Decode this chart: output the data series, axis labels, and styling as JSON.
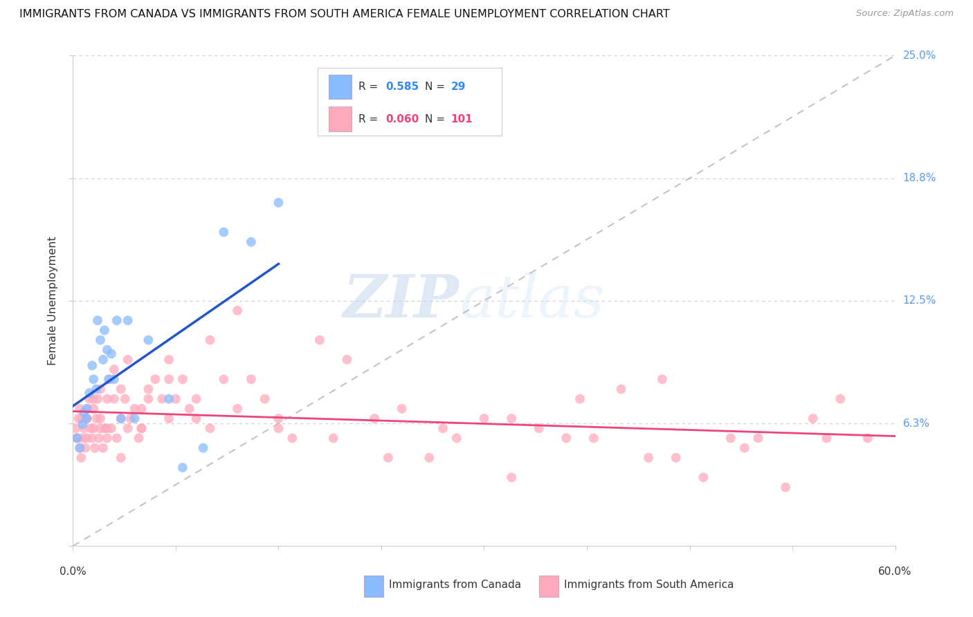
{
  "title": "IMMIGRANTS FROM CANADA VS IMMIGRANTS FROM SOUTH AMERICA FEMALE UNEMPLOYMENT CORRELATION CHART",
  "source": "Source: ZipAtlas.com",
  "ylabel": "Female Unemployment",
  "xlim": [
    0.0,
    60.0
  ],
  "ylim": [
    0.0,
    25.0
  ],
  "canada_color": "#88bbff",
  "canada_line_color": "#2255cc",
  "south_america_color": "#ffaabc",
  "sa_line_color": "#ee4477",
  "canada_R": 0.585,
  "canada_N": 29,
  "sa_R": 0.06,
  "sa_N": 101,
  "legend_label_canada": "Immigrants from Canada",
  "legend_label_sa": "Immigrants from South America",
  "watermark_zip": "ZIP",
  "watermark_atlas": "atlas",
  "right_ytick_positions": [
    6.25,
    12.5,
    18.75,
    25.0
  ],
  "right_ytick_labels": [
    "6.3%",
    "12.5%",
    "18.8%",
    "25.0%"
  ],
  "canada_x": [
    0.3,
    0.5,
    0.7,
    0.8,
    1.0,
    1.0,
    1.2,
    1.4,
    1.5,
    1.7,
    1.8,
    2.0,
    2.2,
    2.3,
    2.5,
    2.6,
    2.8,
    3.0,
    3.2,
    3.5,
    4.0,
    4.5,
    5.5,
    7.0,
    8.0,
    9.5,
    11.0,
    13.0,
    15.0
  ],
  "canada_y": [
    5.5,
    5.0,
    6.2,
    6.8,
    6.5,
    7.0,
    7.8,
    9.2,
    8.5,
    8.0,
    11.5,
    10.5,
    9.5,
    11.0,
    10.0,
    8.5,
    9.8,
    8.5,
    11.5,
    6.5,
    11.5,
    6.5,
    10.5,
    7.5,
    4.0,
    5.0,
    16.0,
    15.5,
    17.5
  ],
  "sa_x": [
    0.2,
    0.3,
    0.4,
    0.5,
    0.5,
    0.6,
    0.7,
    0.8,
    0.9,
    1.0,
    1.0,
    1.1,
    1.2,
    1.3,
    1.4,
    1.5,
    1.5,
    1.6,
    1.7,
    1.8,
    1.9,
    2.0,
    2.0,
    2.2,
    2.3,
    2.5,
    2.5,
    2.7,
    2.8,
    3.0,
    3.0,
    3.2,
    3.5,
    3.5,
    3.8,
    4.0,
    4.0,
    4.2,
    4.5,
    4.8,
    5.0,
    5.0,
    5.5,
    5.5,
    6.0,
    6.5,
    7.0,
    7.0,
    7.5,
    8.0,
    8.5,
    9.0,
    10.0,
    10.0,
    11.0,
    12.0,
    13.0,
    14.0,
    15.0,
    16.0,
    18.0,
    20.0,
    22.0,
    24.0,
    26.0,
    28.0,
    30.0,
    32.0,
    34.0,
    36.0,
    38.0,
    40.0,
    42.0,
    44.0,
    46.0,
    48.0,
    50.0,
    52.0,
    54.0,
    56.0,
    58.0,
    0.3,
    0.6,
    1.0,
    1.5,
    2.0,
    2.5,
    3.5,
    5.0,
    7.0,
    9.0,
    12.0,
    15.0,
    19.0,
    23.0,
    27.0,
    32.0,
    37.0,
    43.0,
    49.0,
    55.0
  ],
  "sa_y": [
    6.0,
    5.5,
    6.5,
    5.0,
    7.0,
    6.5,
    5.5,
    6.0,
    5.0,
    5.5,
    6.5,
    7.0,
    7.5,
    6.0,
    5.5,
    6.0,
    7.5,
    5.0,
    6.5,
    7.5,
    5.5,
    8.0,
    6.5,
    5.0,
    6.0,
    7.5,
    6.0,
    8.5,
    6.0,
    7.5,
    9.0,
    5.5,
    8.0,
    6.5,
    7.5,
    6.0,
    9.5,
    6.5,
    7.0,
    5.5,
    7.0,
    6.0,
    8.0,
    7.5,
    8.5,
    7.5,
    8.5,
    9.5,
    7.5,
    8.5,
    7.0,
    7.5,
    6.0,
    10.5,
    8.5,
    12.0,
    8.5,
    7.5,
    6.0,
    5.5,
    10.5,
    9.5,
    6.5,
    7.0,
    4.5,
    5.5,
    6.5,
    3.5,
    6.0,
    5.5,
    5.5,
    8.0,
    4.5,
    4.5,
    3.5,
    5.5,
    5.5,
    3.0,
    6.5,
    7.5,
    5.5,
    5.5,
    4.5,
    6.5,
    7.0,
    6.0,
    5.5,
    4.5,
    6.0,
    6.5,
    6.5,
    7.0,
    6.5,
    5.5,
    4.5,
    6.0,
    6.5,
    7.5,
    8.5,
    5.0,
    5.5
  ]
}
